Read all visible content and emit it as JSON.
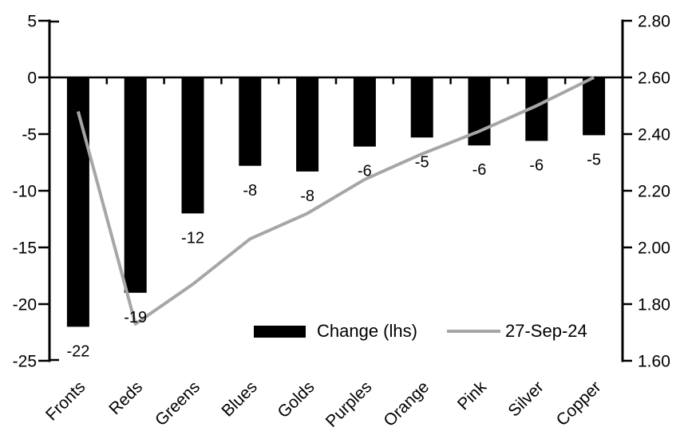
{
  "chart_data": {
    "type": "bar",
    "subtype": "dual-axis column chart with line overlay",
    "title": "",
    "categories": [
      "Fronts",
      "Reds",
      "Greens",
      "Blues",
      "Golds",
      "Purples",
      "Orange",
      "Pink",
      "Silver",
      "Copper"
    ],
    "series": [
      {
        "name": "Change (lhs)",
        "type": "bar",
        "axis": "left",
        "color": "#000000",
        "values": [
          -22,
          -19,
          -12,
          -7.8,
          -8.3,
          -6.1,
          -5.3,
          -6.0,
          -5.6,
          -5.1
        ],
        "data_labels": [
          "-22",
          "-19",
          "-12",
          "-8",
          "-8",
          "-6",
          "-5",
          "-6",
          "-6",
          "-5"
        ]
      },
      {
        "name": "27-Sep-24",
        "type": "line",
        "axis": "right",
        "color": "#a6a6a6",
        "values": [
          2.48,
          1.73,
          1.87,
          2.03,
          2.12,
          2.24,
          2.33,
          2.41,
          2.5,
          2.6
        ]
      }
    ],
    "left_axis": {
      "min": -25,
      "max": 5,
      "tick_labels": [
        "5",
        "0",
        "-5",
        "-10",
        "-15",
        "-20",
        "-25"
      ]
    },
    "right_axis": {
      "min": 1.6,
      "max": 2.8,
      "tick_labels": [
        "2.80",
        "2.60",
        "2.40",
        "2.20",
        "2.00",
        "1.80",
        "1.60"
      ]
    },
    "legend": {
      "position": "bottom-center",
      "entries": [
        "Change (lhs)",
        "27-Sep-24"
      ]
    },
    "grid": "off"
  },
  "colors": {
    "bar": "#000000",
    "line": "#a6a6a6",
    "axis": "#000000",
    "text": "#000000",
    "background": "#ffffff"
  }
}
